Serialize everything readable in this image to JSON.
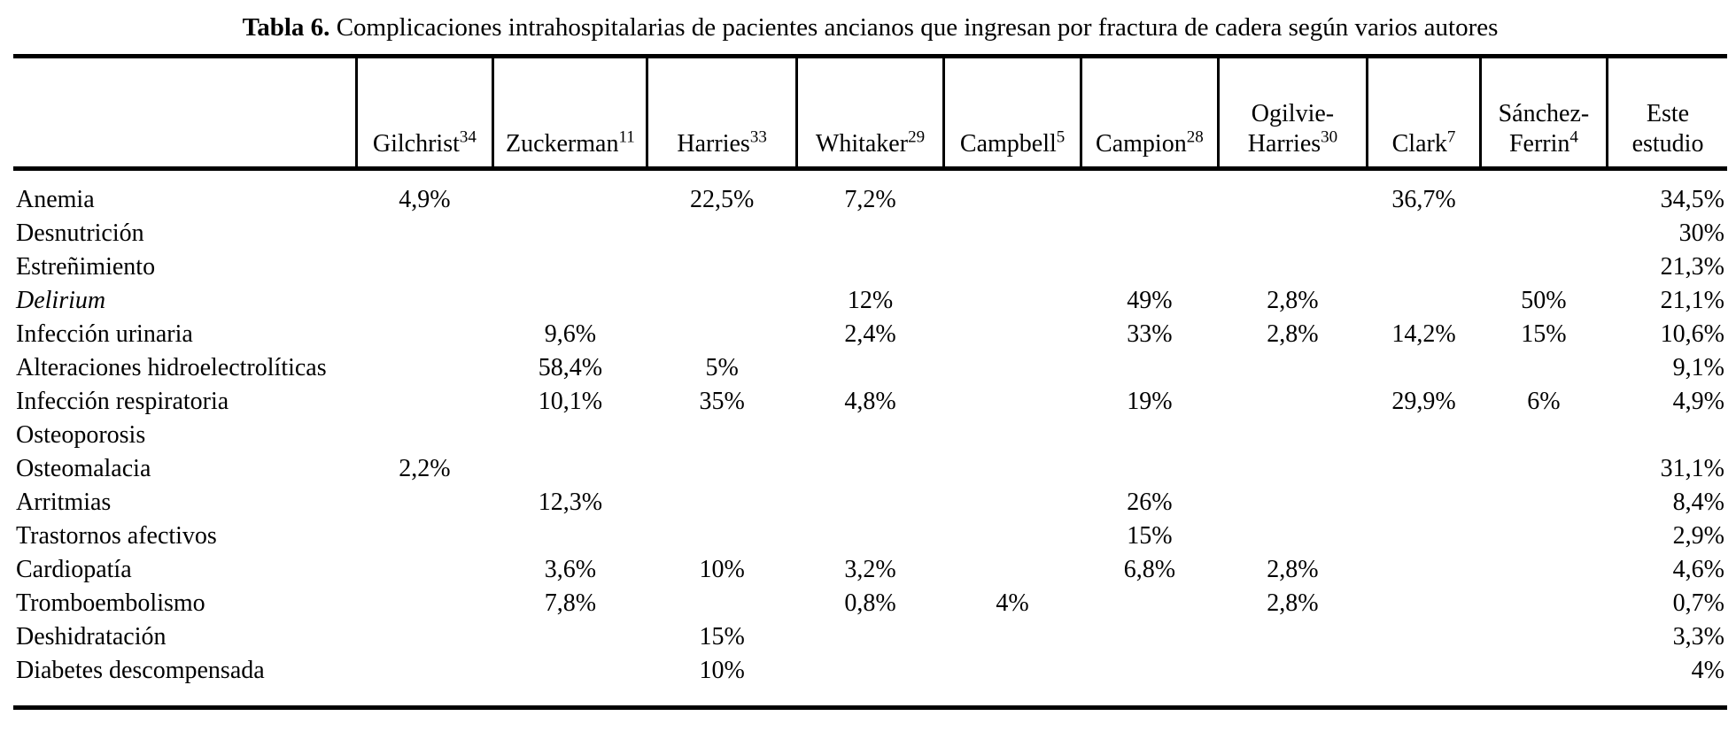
{
  "title": {
    "label": "Tabla 6.",
    "text": "Complicaciones intrahospitalarias de pacientes ancianos que ingresan por fractura de cadera según varios autores"
  },
  "table": {
    "columns": [
      {
        "lines": [
          "Gilchrist"
        ],
        "ref": "34"
      },
      {
        "lines": [
          "Zuckerman"
        ],
        "ref": "11"
      },
      {
        "lines": [
          "Harries"
        ],
        "ref": "33"
      },
      {
        "lines": [
          "Whitaker"
        ],
        "ref": "29"
      },
      {
        "lines": [
          "Campbell"
        ],
        "ref": "5"
      },
      {
        "lines": [
          "Campion"
        ],
        "ref": "28"
      },
      {
        "lines": [
          "Ogilvie-",
          "Harries"
        ],
        "ref": "30"
      },
      {
        "lines": [
          "Clark"
        ],
        "ref": "7"
      },
      {
        "lines": [
          "Sánchez-",
          "Ferrin"
        ],
        "ref": "4"
      },
      {
        "lines": [
          "Este",
          "estudio"
        ],
        "ref": ""
      }
    ],
    "rows": [
      {
        "label": "Anemia",
        "italic": false,
        "values": [
          "4,9%",
          "",
          "22,5%",
          "7,2%",
          "",
          "",
          "",
          "36,7%",
          "",
          "34,5%"
        ]
      },
      {
        "label": "Desnutrición",
        "italic": false,
        "values": [
          "",
          "",
          "",
          "",
          "",
          "",
          "",
          "",
          "",
          "30%"
        ]
      },
      {
        "label": "Estreñimiento",
        "italic": false,
        "values": [
          "",
          "",
          "",
          "",
          "",
          "",
          "",
          "",
          "",
          "21,3%"
        ]
      },
      {
        "label": "Delirium",
        "italic": true,
        "values": [
          "",
          "",
          "",
          "12%",
          "",
          "49%",
          "2,8%",
          "",
          "50%",
          "21,1%"
        ]
      },
      {
        "label": "Infección urinaria",
        "italic": false,
        "values": [
          "",
          "9,6%",
          "",
          "2,4%",
          "",
          "33%",
          "2,8%",
          "14,2%",
          "15%",
          "10,6%"
        ]
      },
      {
        "label": "Alteraciones hidroelectrolíticas",
        "italic": false,
        "values": [
          "",
          "58,4%",
          "5%",
          "",
          "",
          "",
          "",
          "",
          "",
          "9,1%"
        ]
      },
      {
        "label": "Infección respiratoria",
        "italic": false,
        "values": [
          "",
          "10,1%",
          "35%",
          "4,8%",
          "",
          "19%",
          "",
          "29,9%",
          "6%",
          "4,9%"
        ]
      },
      {
        "label": "Osteoporosis",
        "italic": false,
        "values": [
          "",
          "",
          "",
          "",
          "",
          "",
          "",
          "",
          "",
          ""
        ]
      },
      {
        "label": "Osteomalacia",
        "italic": false,
        "values": [
          "2,2%",
          "",
          "",
          "",
          "",
          "",
          "",
          "",
          "",
          "31,1%"
        ]
      },
      {
        "label": "Arritmias",
        "italic": false,
        "values": [
          "",
          "12,3%",
          "",
          "",
          "",
          "26%",
          "",
          "",
          "",
          "8,4%"
        ]
      },
      {
        "label": "Trastornos afectivos",
        "italic": false,
        "values": [
          "",
          "",
          "",
          "",
          "",
          "15%",
          "",
          "",
          "",
          "2,9%"
        ]
      },
      {
        "label": "Cardiopatía",
        "italic": false,
        "values": [
          "",
          "3,6%",
          "10%",
          "3,2%",
          "",
          "6,8%",
          "2,8%",
          "",
          "",
          "4,6%"
        ]
      },
      {
        "label": "Tromboembolismo",
        "italic": false,
        "values": [
          "",
          "7,8%",
          "",
          "0,8%",
          "4%",
          "",
          "2,8%",
          "",
          "",
          "0,7%"
        ]
      },
      {
        "label": "Deshidratación",
        "italic": false,
        "values": [
          "",
          "",
          "15%",
          "",
          "",
          "",
          "",
          "",
          "",
          "3,3%"
        ]
      },
      {
        "label": "Diabetes descompensada",
        "italic": false,
        "values": [
          "",
          "",
          "10%",
          "",
          "",
          "",
          "",
          "",
          "",
          "4%"
        ]
      }
    ]
  }
}
